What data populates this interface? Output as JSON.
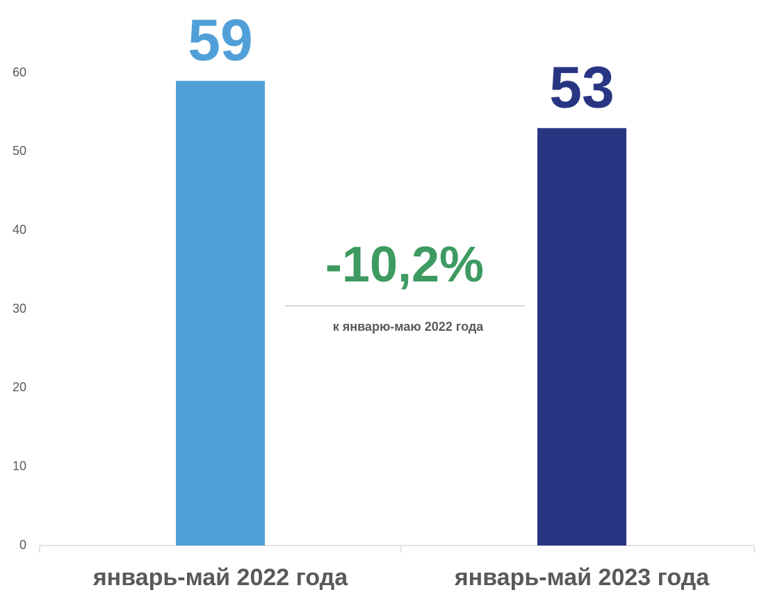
{
  "chart_data": {
    "type": "bar",
    "categories": [
      "январь-май 2022 года",
      "январь-май 2023 года"
    ],
    "values": [
      59,
      53
    ],
    "colors": [
      "#519fd8",
      "#283583"
    ],
    "ylim": [
      0,
      60
    ],
    "yticks": [
      0,
      10,
      20,
      30,
      40,
      50,
      60
    ],
    "grid": false,
    "annotations": [
      "-10,2%",
      "к январю-маю 2022 года"
    ],
    "annotation_color": "#3d9a60"
  }
}
